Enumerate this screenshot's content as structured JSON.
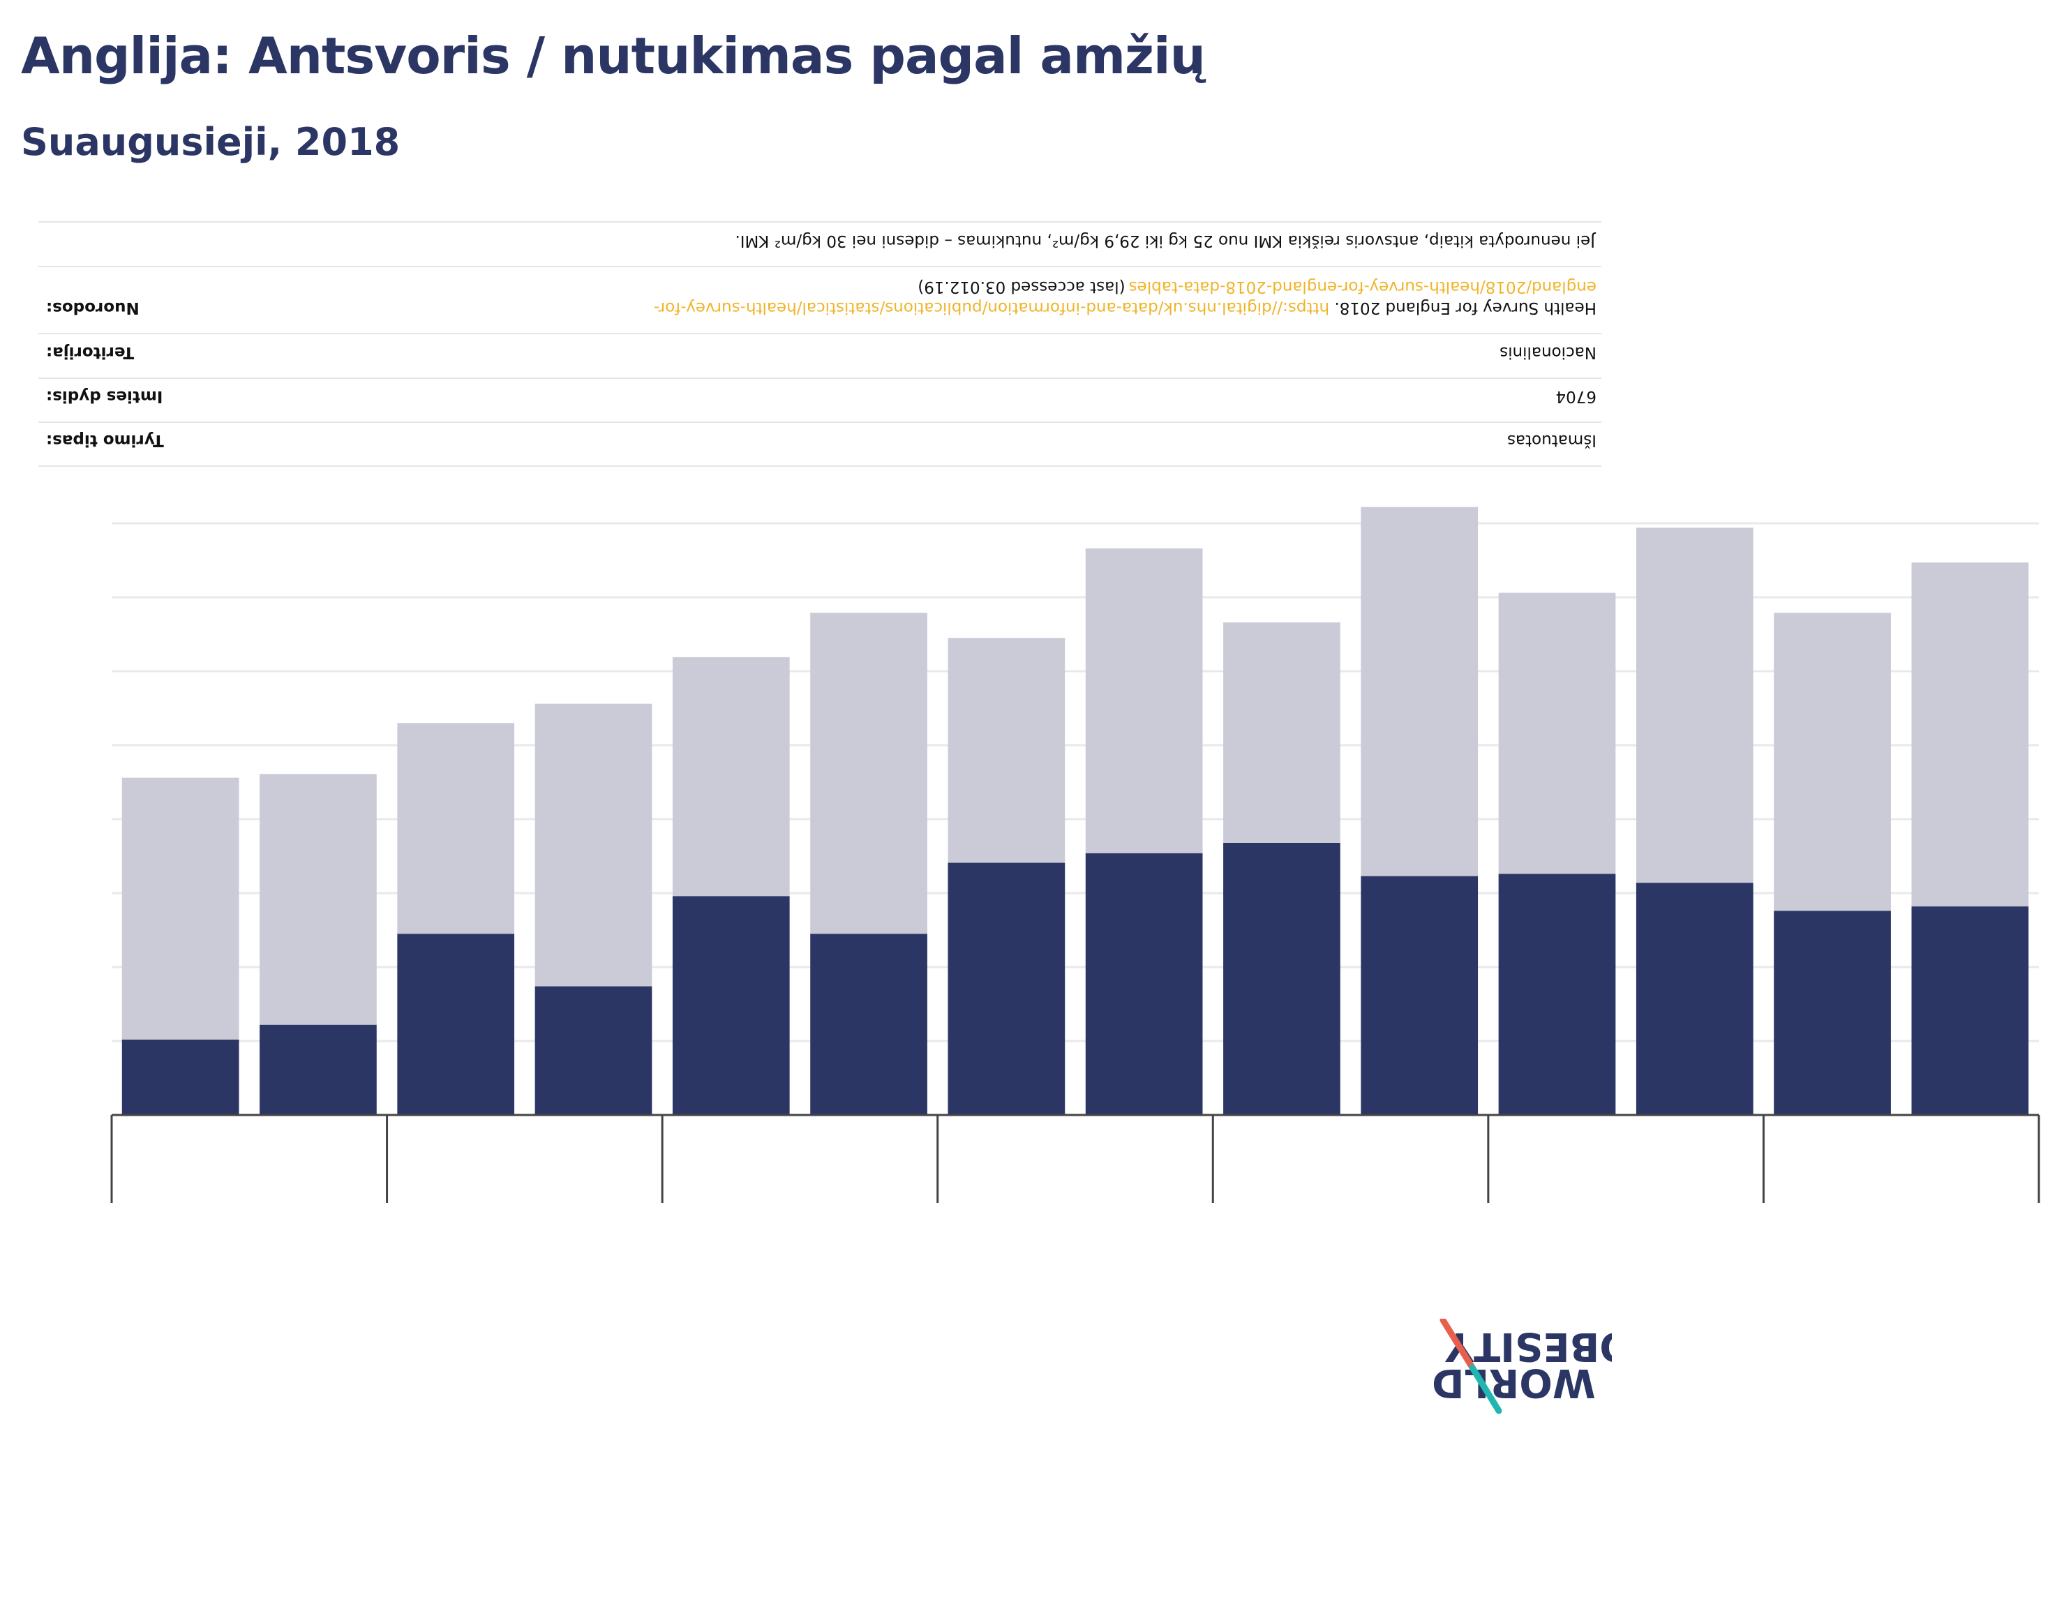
{
  "title": "Anglija: Antsvoris / nutukimas pagal amžių",
  "subtitle": "Suaugusieji, 2018",
  "colors": {
    "overweight": "#cacbd6",
    "obesity": "#2b3664",
    "grid": "#e8e9ee",
    "axis": "#444444",
    "link": "#f0b429"
  },
  "metadata": {
    "note": "Jei nenurodyta kitaip, antsvoris reiškia KMI nuo 25 kg iki 29,9 kg/m², nutukimas – didesni nei 30 kg/m² KMI.",
    "rows": [
      {
        "label": "Nuorodos:",
        "value_prefix": "Health Survey for England 2018. ",
        "link_line1": "https://digital.nhs.uk/data-and-information/publications/statistical/health-survey-for-",
        "link_line2": "england/2018/health-survey-for-england-2018-data-tables",
        "value_suffix": " (last accessed 03.012.19)"
      },
      {
        "label": "Teritorija:",
        "value": "Nacionalinis"
      },
      {
        "label": "Imties dydis:",
        "value": "6704"
      },
      {
        "label": "Tyrimo tipas:",
        "value": "Išmatuotas"
      }
    ]
  },
  "logo": {
    "line1": "OBESITY",
    "line2": "WORLD",
    "slash_color_top": "#e8604c",
    "slash_color_bottom": "#1fb7b0"
  },
  "chart_data": {
    "type": "bar",
    "stacked": true,
    "rendering": "rotated 180 degrees",
    "grid": true,
    "ylim": [
      0,
      80
    ],
    "series": [
      {
        "name": "",
        "values": [
          10.2,
          12.2,
          24.5,
          17.4,
          29.6,
          24.5,
          34.1,
          35.4,
          36.8,
          32.3,
          32.6,
          31.4,
          27.6,
          28.2
        ]
      },
      {
        "name": "",
        "values": [
          35.4,
          33.9,
          28.5,
          38.2,
          32.3,
          43.4,
          30.4,
          41.2,
          29.8,
          49.9,
          38.0,
          48.0,
          40.3,
          46.5
        ]
      }
    ],
    "categories": [
      "",
      "",
      "",
      "",
      "",
      "",
      "",
      "",
      "",
      "",
      "",
      "",
      "",
      ""
    ],
    "group_count": 7
  }
}
